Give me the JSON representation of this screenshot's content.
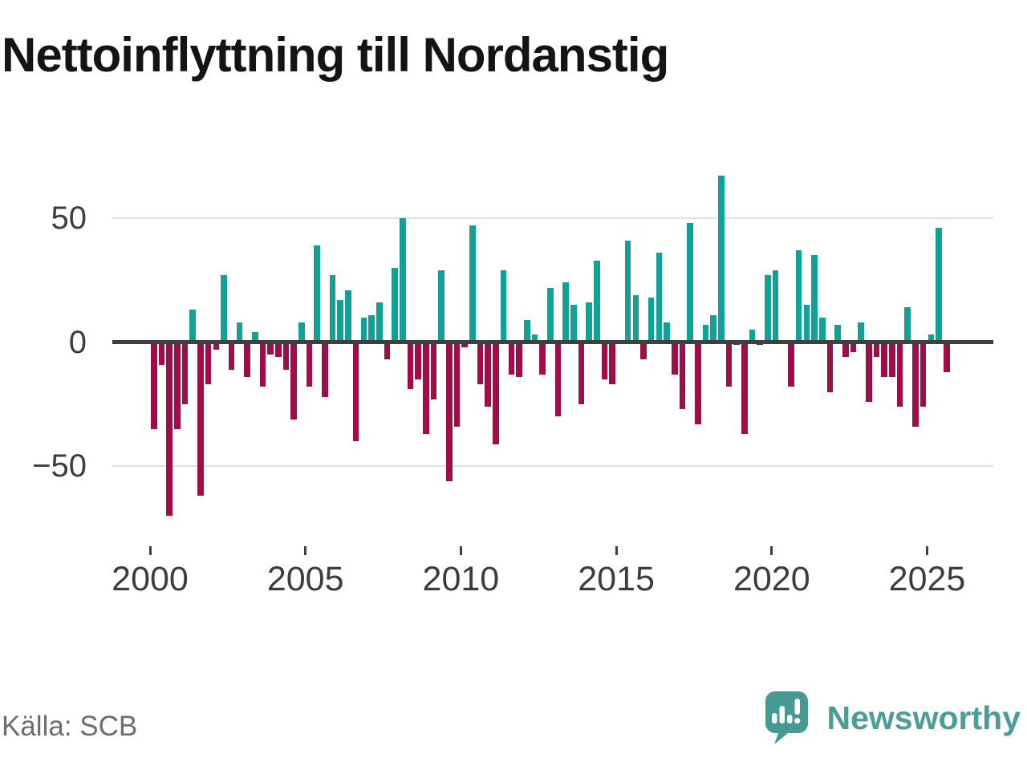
{
  "title": "Nettoinflyttning till Nordanstig",
  "source": "Källa: SCB",
  "branding": {
    "name": "Newsworthy",
    "logo_color": "#479a93",
    "text_color": "#4c9d96"
  },
  "colors": {
    "positive_bar": "#12a195",
    "negative_bar": "#a00e48",
    "zero_line": "#3f3f3f",
    "gridline": "#e1e1e1",
    "axis_text": "#3d3d3d",
    "title_text": "#141414",
    "source_text": "#6e6e6e"
  },
  "chart_data": {
    "type": "bar",
    "title": "Nettoinflyttning till Nordanstig",
    "frequency": "quarterly",
    "start": "2000Q1",
    "end": "2025Q3",
    "values": [
      -35,
      -9,
      -70,
      -35,
      -25,
      13,
      -62,
      -17,
      -3,
      27,
      -11,
      8,
      -14,
      4,
      -18,
      -5,
      -6,
      -11,
      -31,
      8,
      -18,
      39,
      -22,
      27,
      17,
      21,
      -40,
      10,
      11,
      16,
      -7,
      30,
      50,
      -19,
      -15,
      -37,
      -23,
      29,
      -56,
      -34,
      -2,
      47,
      -17,
      -26,
      -41,
      29,
      -13,
      -14,
      9,
      3,
      -13,
      22,
      -30,
      24,
      15,
      -25,
      16,
      33,
      -15,
      -17,
      0,
      41,
      19,
      -7,
      18,
      36,
      8,
      -13,
      -27,
      48,
      -33,
      7,
      11,
      67,
      -18,
      -1,
      -37,
      5,
      -1,
      27,
      29,
      0,
      -18,
      37,
      15,
      35,
      10,
      -20,
      7,
      -6,
      -4,
      8,
      -24,
      -6,
      -14,
      -14,
      -26,
      14,
      -34,
      -26,
      3,
      46,
      -12
    ],
    "positive_color": "#12a195",
    "negative_color": "#a00e48",
    "y_ticks": [
      50,
      0,
      -50
    ],
    "x_ticks": [
      2000,
      2005,
      2010,
      2015,
      2020,
      2025
    ],
    "ylim": [
      -75,
      70
    ],
    "grid": "horizontal gridlines at +50 and -50, dark zero axis",
    "legend": "none",
    "xlabel": "",
    "ylabel": ""
  }
}
